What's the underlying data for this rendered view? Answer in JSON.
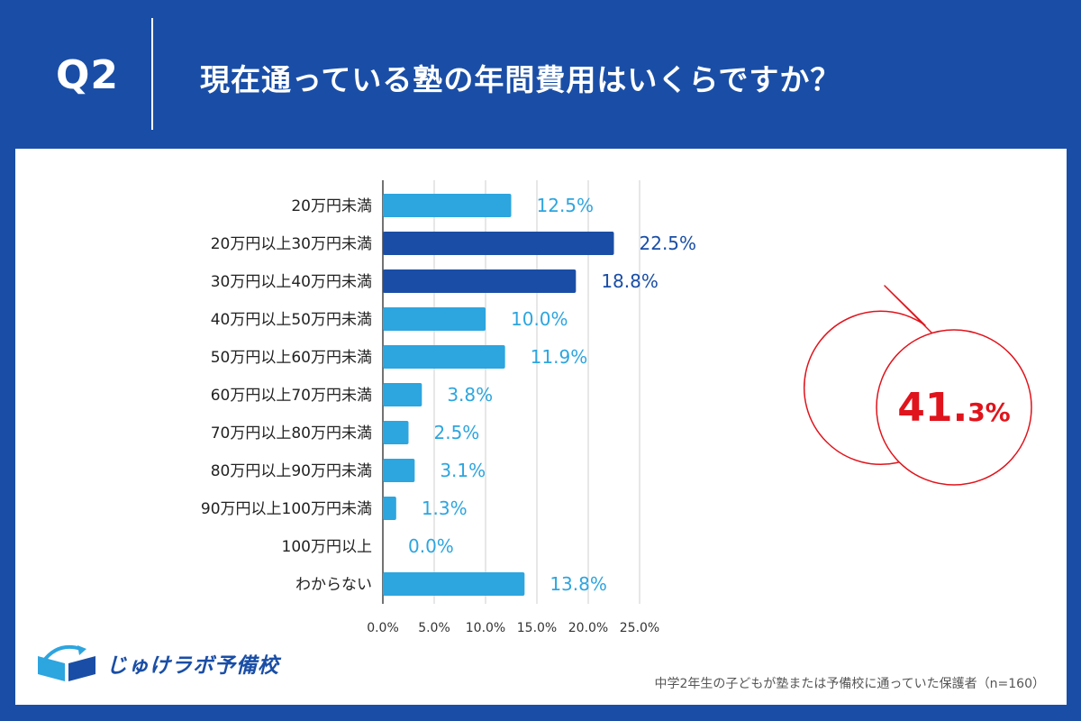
{
  "header": {
    "q_label": "Q2",
    "question": "現在通っている塾の年間費用はいくらですか？"
  },
  "chart_data": {
    "type": "bar",
    "orientation": "horizontal",
    "categories": [
      "20万円未満",
      "20万円以上30万円未満",
      "30万円以上40万円未満",
      "40万円以上50万円未満",
      "50万円以上60万円未満",
      "60万円以上70万円未満",
      "70万円以上80万円未満",
      "80万円以上90万円未満",
      "90万円以上100万円未満",
      "100万円以上",
      "わからない"
    ],
    "values": [
      12.5,
      22.5,
      18.8,
      10.0,
      11.9,
      3.8,
      2.5,
      3.1,
      1.3,
      0.0,
      13.8
    ],
    "value_labels": [
      "12.5%",
      "22.5%",
      "18.8%",
      "10.0%",
      "11.9%",
      "3.8%",
      "2.5%",
      "3.1%",
      "1.3%",
      "0.0%",
      "13.8%"
    ],
    "highlighted": [
      false,
      true,
      true,
      false,
      false,
      false,
      false,
      false,
      false,
      false,
      false
    ],
    "xlim": [
      0,
      25
    ],
    "xticks": [
      "0.0%",
      "5.0%",
      "10.0%",
      "15.0%",
      "20.0%",
      "25.0%"
    ],
    "grid": true,
    "colors": {
      "normal": "#2da5df",
      "highlight": "#1a4ea6",
      "callout": "#e0141c"
    },
    "callout": {
      "big": "41.",
      "small": "3%"
    }
  },
  "footer": {
    "logo_text": "じゅけラボ予備校",
    "source": "中学2年生の子どもが塾または予備校に通っていた保護者（n=160）"
  }
}
